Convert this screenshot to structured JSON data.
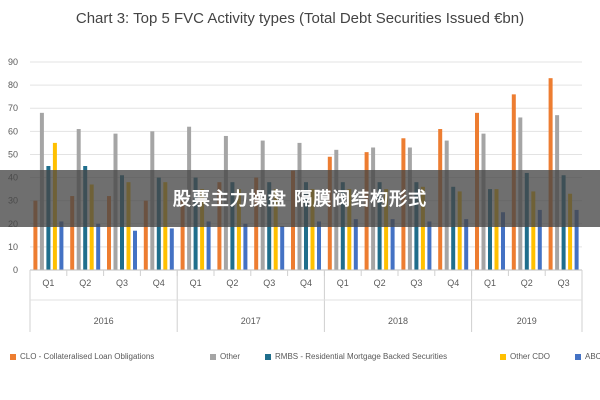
{
  "chart_data": {
    "type": "bar",
    "title": "Chart 3: Top 5 FVC Activity types (Total Debt Securities Issued €bn)",
    "categories": [
      "Q1",
      "Q2",
      "Q3",
      "Q4",
      "Q1",
      "Q2",
      "Q3",
      "Q4",
      "Q1",
      "Q2",
      "Q3",
      "Q4",
      "Q1",
      "Q2",
      "Q3"
    ],
    "groups": [
      {
        "label": "2016",
        "count": 4
      },
      {
        "label": "2017",
        "count": 4
      },
      {
        "label": "2018",
        "count": 4
      },
      {
        "label": "2019",
        "count": 3
      }
    ],
    "y_ticks": [
      "0",
      "10",
      "20",
      "30",
      "40",
      "50",
      "60",
      "70",
      "80",
      "90"
    ],
    "ylim": [
      0,
      90
    ],
    "grid": true,
    "legend_position": "bottom",
    "series": [
      {
        "name": "CLO - Collateralised Loan Obligations",
        "color": "#ED7D31",
        "values": [
          30,
          32,
          32,
          30,
          30,
          38,
          40,
          43,
          49,
          51,
          57,
          61,
          68,
          76,
          83
        ]
      },
      {
        "name": "Other",
        "color": "#A5A5A5",
        "values": [
          68,
          61,
          59,
          60,
          62,
          58,
          56,
          55,
          52,
          53,
          53,
          56,
          59,
          66,
          67
        ]
      },
      {
        "name": "RMBS - Residential Mortgage Backed Securities",
        "color": "#1F6E8C",
        "values": [
          45,
          45,
          41,
          40,
          40,
          38,
          38,
          38,
          38,
          38,
          38,
          36,
          35,
          42,
          41
        ]
      },
      {
        "name": "Other CDO",
        "color": "#FFC000",
        "values": [
          55,
          37,
          38,
          38,
          35,
          35,
          35,
          35,
          35,
          35,
          36,
          34,
          35,
          34,
          33
        ]
      },
      {
        "name": "ABCP",
        "color": "#4472C4",
        "values": [
          21,
          20,
          17,
          18,
          21,
          20,
          19,
          21,
          22,
          22,
          21,
          22,
          25,
          26,
          26
        ]
      }
    ]
  },
  "overlay": {
    "text": "股票主力操盘 隔膜阀结构形式"
  }
}
